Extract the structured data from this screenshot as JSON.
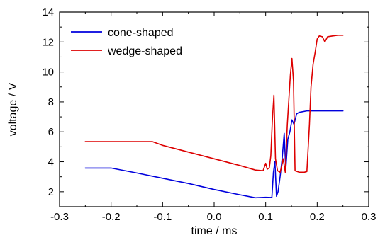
{
  "chart_data": {
    "type": "line",
    "title": "",
    "xlabel": "time / ms",
    "ylabel": "voltage / V",
    "xlim": [
      -0.3,
      0.3
    ],
    "ylim": [
      1,
      14
    ],
    "xticks": [
      -0.3,
      -0.2,
      -0.1,
      0.0,
      0.1,
      0.2,
      0.3
    ],
    "xtick_labels": [
      "-0.3",
      "-0.2",
      "-0.1",
      "0.0",
      "0.1",
      "0.2",
      "0.3"
    ],
    "yticks": [
      2,
      4,
      6,
      8,
      10,
      12,
      14
    ],
    "ytick_labels": [
      "2",
      "4",
      "6",
      "8",
      "10",
      "12",
      "14"
    ],
    "grid": false,
    "legend_position": "top-left",
    "series": [
      {
        "name": "cone-shaped",
        "color": "#0000dd",
        "points": [
          [
            -0.25,
            3.58
          ],
          [
            -0.2,
            3.58
          ],
          [
            -0.15,
            3.25
          ],
          [
            -0.1,
            2.9
          ],
          [
            -0.05,
            2.55
          ],
          [
            0.0,
            2.15
          ],
          [
            0.05,
            1.8
          ],
          [
            0.08,
            1.6
          ],
          [
            0.1,
            1.63
          ],
          [
            0.112,
            1.62
          ],
          [
            0.115,
            3.3
          ],
          [
            0.118,
            4.0
          ],
          [
            0.121,
            1.7
          ],
          [
            0.124,
            2.0
          ],
          [
            0.128,
            3.0
          ],
          [
            0.132,
            4.2
          ],
          [
            0.136,
            5.9
          ],
          [
            0.139,
            3.5
          ],
          [
            0.143,
            5.5
          ],
          [
            0.147,
            6.0
          ],
          [
            0.151,
            6.8
          ],
          [
            0.155,
            6.5
          ],
          [
            0.16,
            7.2
          ],
          [
            0.165,
            7.3
          ],
          [
            0.18,
            7.4
          ],
          [
            0.2,
            7.4
          ],
          [
            0.225,
            7.4
          ],
          [
            0.25,
            7.4
          ]
        ]
      },
      {
        "name": "wedge-shaped",
        "color": "#dd0000",
        "points": [
          [
            -0.25,
            5.35
          ],
          [
            -0.2,
            5.35
          ],
          [
            -0.15,
            5.35
          ],
          [
            -0.12,
            5.35
          ],
          [
            -0.1,
            5.1
          ],
          [
            -0.05,
            4.65
          ],
          [
            0.0,
            4.2
          ],
          [
            0.05,
            3.75
          ],
          [
            0.08,
            3.45
          ],
          [
            0.095,
            3.4
          ],
          [
            0.1,
            3.9
          ],
          [
            0.103,
            3.5
          ],
          [
            0.107,
            3.6
          ],
          [
            0.11,
            4.4
          ],
          [
            0.113,
            6.8
          ],
          [
            0.116,
            8.45
          ],
          [
            0.119,
            4.2
          ],
          [
            0.123,
            3.4
          ],
          [
            0.128,
            3.3
          ],
          [
            0.131,
            3.7
          ],
          [
            0.134,
            4.2
          ],
          [
            0.138,
            3.3
          ],
          [
            0.142,
            6.5
          ],
          [
            0.148,
            9.8
          ],
          [
            0.151,
            10.9
          ],
          [
            0.154,
            9.4
          ],
          [
            0.157,
            3.4
          ],
          [
            0.165,
            3.3
          ],
          [
            0.175,
            3.3
          ],
          [
            0.18,
            3.35
          ],
          [
            0.185,
            6.5
          ],
          [
            0.188,
            9.0
          ],
          [
            0.192,
            10.5
          ],
          [
            0.196,
            11.3
          ],
          [
            0.2,
            12.2
          ],
          [
            0.204,
            12.4
          ],
          [
            0.21,
            12.35
          ],
          [
            0.215,
            12.0
          ],
          [
            0.22,
            12.35
          ],
          [
            0.23,
            12.4
          ],
          [
            0.24,
            12.45
          ],
          [
            0.25,
            12.45
          ]
        ]
      }
    ]
  }
}
